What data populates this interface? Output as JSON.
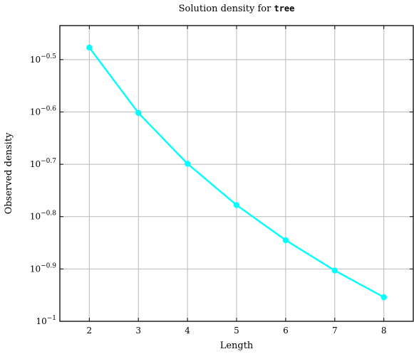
{
  "chart_data": {
    "type": "line",
    "title": {
      "prefix": "Solution density for ",
      "code": "tree"
    },
    "xlabel": "Length",
    "ylabel": "Observed density",
    "x_ticks": [
      2,
      3,
      4,
      5,
      6,
      7,
      8
    ],
    "y_scale": "log10",
    "y_ticks": [
      {
        "value": -0.5,
        "base": "10",
        "exp": "−0.5"
      },
      {
        "value": -0.6,
        "base": "10",
        "exp": "−0.6"
      },
      {
        "value": -0.7,
        "base": "10",
        "exp": "−0.7"
      },
      {
        "value": -0.8,
        "base": "10",
        "exp": "−0.8"
      },
      {
        "value": -0.9,
        "base": "10",
        "exp": "−0.9"
      },
      {
        "value": -1.0,
        "base": "10",
        "exp": "−1"
      }
    ],
    "xlim": [
      1.4,
      8.6
    ],
    "ylim_log10": [
      -1.0,
      -0.435
    ],
    "grid": true,
    "series": [
      {
        "color": "#00ffff",
        "x": [
          2,
          3,
          4,
          5,
          6,
          7,
          8
        ],
        "y_log10": [
          -0.477,
          -0.602,
          -0.699,
          -0.778,
          -0.845,
          -0.903,
          -0.954
        ]
      }
    ]
  }
}
